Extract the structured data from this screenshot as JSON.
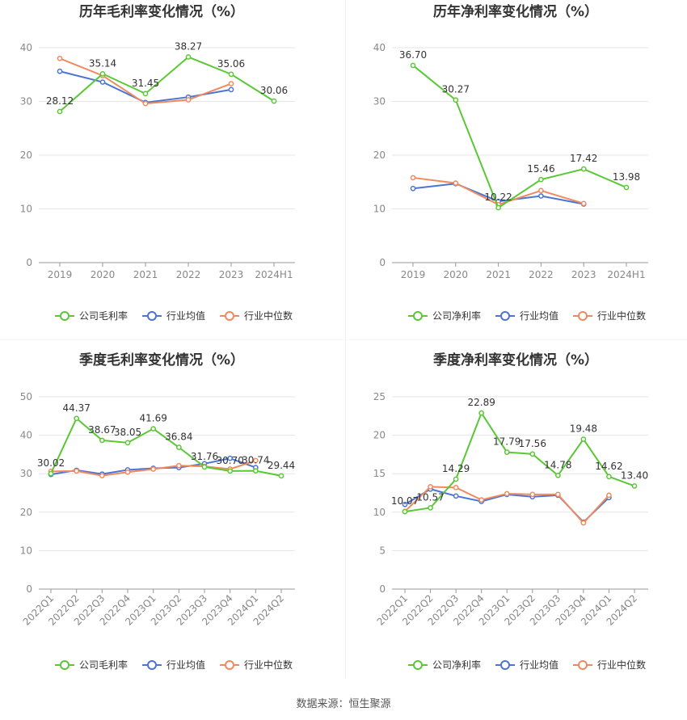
{
  "source": "数据来源：恒生聚源",
  "colors": {
    "company": "#5ac835",
    "avg": "#4a74d6",
    "median": "#ef8a5e",
    "grid": "#e6e6e6",
    "axis": "#888888",
    "title": "#333333"
  },
  "chart_data": [
    {
      "type": "line",
      "title": "历年毛利率变化情况（%）",
      "categories": [
        "2019",
        "2020",
        "2021",
        "2022",
        "2023",
        "2024H1"
      ],
      "ylim": [
        0,
        40
      ],
      "yticks": [
        0,
        10,
        20,
        30,
        40
      ],
      "grid": true,
      "legend_position": "bottom-center",
      "series": [
        {
          "name": "公司毛利率",
          "key": "company",
          "values": [
            28.12,
            35.14,
            31.45,
            38.27,
            35.06,
            30.06
          ],
          "labels": [
            "28.12",
            "35.14",
            "31.45",
            "38.27",
            "35.06",
            "30.06"
          ]
        },
        {
          "name": "行业均值",
          "key": "avg",
          "values": [
            35.6,
            33.6,
            29.8,
            30.8,
            32.2,
            null
          ]
        },
        {
          "name": "行业中位数",
          "key": "median",
          "values": [
            38.0,
            34.8,
            29.6,
            30.3,
            33.3,
            null
          ]
        }
      ]
    },
    {
      "type": "line",
      "title": "历年净利率变化情况（%）",
      "categories": [
        "2019",
        "2020",
        "2021",
        "2022",
        "2023",
        "2024H1"
      ],
      "ylim": [
        0,
        40
      ],
      "yticks": [
        0,
        10,
        20,
        30,
        40
      ],
      "grid": true,
      "legend_position": "bottom-center",
      "series": [
        {
          "name": "公司净利率",
          "key": "company",
          "values": [
            36.7,
            30.27,
            10.22,
            15.46,
            17.42,
            13.98
          ],
          "labels": [
            "36.70",
            "30.27",
            "10.22",
            "15.46",
            "17.42",
            "13.98"
          ]
        },
        {
          "name": "行业均值",
          "key": "avg",
          "values": [
            13.8,
            14.7,
            11.4,
            12.4,
            10.9,
            null
          ]
        },
        {
          "name": "行业中位数",
          "key": "median",
          "values": [
            15.8,
            14.8,
            10.8,
            13.4,
            11.0,
            null
          ]
        }
      ]
    },
    {
      "type": "line",
      "title": "季度毛利率变化情况（%）",
      "categories": [
        "2022Q1",
        "2022Q2",
        "2022Q3",
        "2022Q4",
        "2023Q1",
        "2023Q2",
        "2023Q3",
        "2023Q4",
        "2024Q1",
        "2024Q2"
      ],
      "ylim": [
        0,
        50
      ],
      "yticks": [
        0,
        10,
        20,
        30,
        40,
        50
      ],
      "grid": true,
      "legend_position": "bottom-center",
      "series": [
        {
          "name": "公司毛利率",
          "key": "company",
          "values": [
            30.02,
            44.37,
            38.67,
            38.05,
            41.69,
            36.84,
            31.76,
            30.7,
            30.74,
            29.44
          ],
          "labels": [
            "30.02",
            "44.37",
            "38.67",
            "38.05",
            "41.69",
            "36.84",
            "31.76",
            "30.70",
            "30.74",
            "29.44"
          ]
        },
        {
          "name": "行业均值",
          "key": "avg",
          "values": [
            29.8,
            30.9,
            29.9,
            31.0,
            31.4,
            31.6,
            32.6,
            34.0,
            31.6,
            null
          ]
        },
        {
          "name": "行业中位数",
          "key": "median",
          "values": [
            30.6,
            30.7,
            29.5,
            30.4,
            31.2,
            32.1,
            31.9,
            31.2,
            33.4,
            null
          ]
        }
      ]
    },
    {
      "type": "line",
      "title": "季度净利率变化情况（%）",
      "categories": [
        "2022Q1",
        "2022Q2",
        "2022Q3",
        "2022Q4",
        "2023Q1",
        "2023Q2",
        "2023Q3",
        "2023Q4",
        "2024Q1",
        "2024Q2"
      ],
      "ylim": [
        0,
        25
      ],
      "yticks": [
        0,
        5,
        10,
        15,
        20,
        25
      ],
      "grid": true,
      "legend_position": "bottom-center",
      "series": [
        {
          "name": "公司净利率",
          "key": "company",
          "values": [
            10.07,
            10.57,
            14.29,
            22.89,
            17.79,
            17.56,
            14.78,
            19.48,
            14.62,
            13.4
          ],
          "labels": [
            "10.07",
            "10.57",
            "14.29",
            "22.89",
            "17.79",
            "17.56",
            "14.78",
            "19.48",
            "14.62",
            "13.40"
          ]
        },
        {
          "name": "行业均值",
          "key": "avg",
          "values": [
            11.0,
            13.0,
            12.1,
            11.4,
            12.3,
            12.0,
            12.2,
            8.7,
            11.9,
            null
          ]
        },
        {
          "name": "行业中位数",
          "key": "median",
          "values": [
            10.1,
            13.3,
            13.2,
            11.6,
            12.4,
            12.3,
            12.3,
            8.6,
            12.2,
            null
          ]
        }
      ]
    }
  ]
}
